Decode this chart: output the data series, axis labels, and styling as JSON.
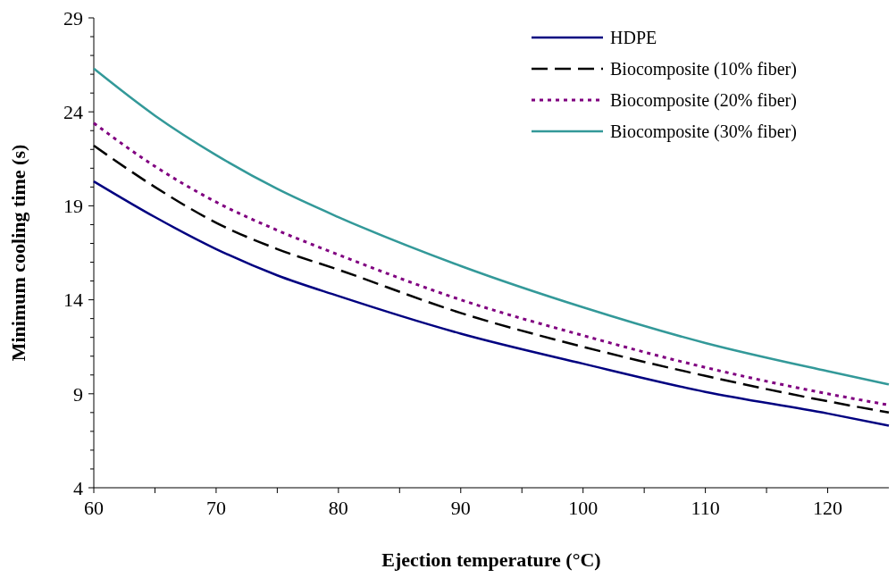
{
  "chart_data": {
    "type": "line",
    "xlabel": "Ejection temperature (°C)",
    "ylabel": "Minimum cooling time (s)",
    "x": [
      60,
      65,
      70,
      75,
      80,
      90,
      100,
      110,
      120,
      125
    ],
    "series": [
      {
        "name": "HDPE",
        "color": "#000080",
        "line_style": "solid",
        "values": [
          20.3,
          18.4,
          16.7,
          15.3,
          14.2,
          12.2,
          10.6,
          9.1,
          7.95,
          7.3
        ]
      },
      {
        "name": "Biocomposite (10% fiber)",
        "color": "#000000",
        "line_style": "dashed",
        "values": [
          22.2,
          20.0,
          18.1,
          16.7,
          15.6,
          13.3,
          11.5,
          9.95,
          8.6,
          8.0
        ]
      },
      {
        "name": "Biocomposite (20% fiber)",
        "color": "#800080",
        "line_style": "dotted",
        "values": [
          23.4,
          21.1,
          19.2,
          17.7,
          16.4,
          14.0,
          12.1,
          10.4,
          9.0,
          8.4
        ]
      },
      {
        "name": "Biocomposite (30% fiber)",
        "color": "#339999",
        "line_style": "solid",
        "values": [
          26.3,
          23.8,
          21.7,
          19.9,
          18.4,
          15.8,
          13.6,
          11.7,
          10.2,
          9.5
        ]
      }
    ],
    "xlim": [
      60,
      125
    ],
    "xticks": [
      60,
      {
        "value": 65,
        "label": null
      },
      70,
      {
        "value": 75,
        "label": null
      },
      80,
      {
        "value": 85,
        "label": null
      },
      90,
      {
        "value": 95,
        "label": null
      },
      100,
      {
        "value": 105,
        "label": null
      },
      110,
      {
        "value": 115,
        "label": null
      },
      120
    ],
    "ylim": [
      4,
      29
    ],
    "yticks": [
      4,
      9,
      14,
      19,
      24,
      29
    ],
    "grid": false,
    "legend": "top right"
  }
}
